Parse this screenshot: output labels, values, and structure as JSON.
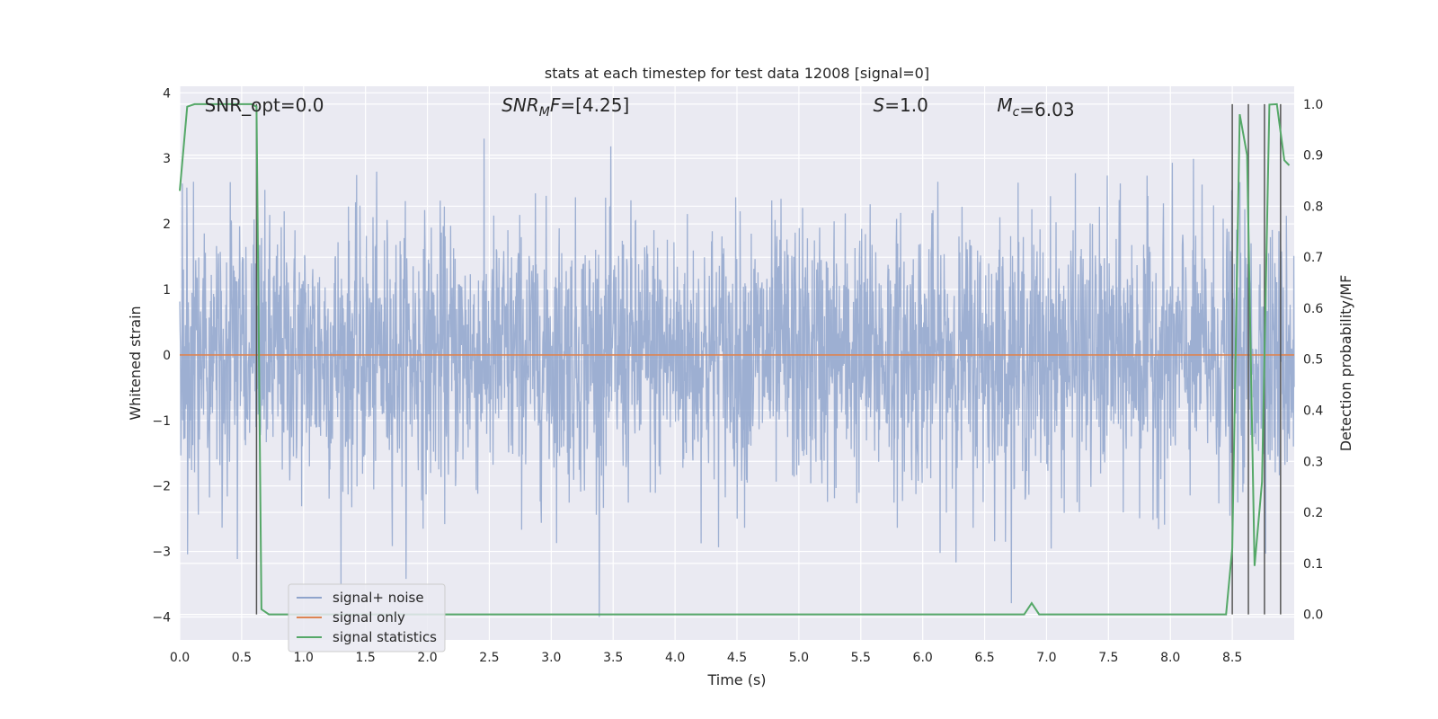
{
  "chart_data": {
    "type": "line",
    "title": "stats at each timestep for test data 12008 [signal=0]",
    "xlabel": "Time (s)",
    "ylabel": "Whitened strain",
    "ylabel_right": "Detection probability/MF",
    "xlim": [
      0,
      9.0
    ],
    "ylim": [
      -4.35,
      4.1
    ],
    "ylim_right": [
      -0.05,
      1.035
    ],
    "x_ticks": [
      "0.0",
      "0.5",
      "1.0",
      "1.5",
      "2.0",
      "2.5",
      "3.0",
      "3.5",
      "4.0",
      "4.5",
      "5.0",
      "5.5",
      "6.0",
      "6.5",
      "7.0",
      "7.5",
      "8.0",
      "8.5"
    ],
    "y_ticks": [
      "4",
      "3",
      "2",
      "1",
      "0",
      "−1",
      "−2",
      "−3",
      "−4"
    ],
    "y_ticks_right": [
      "1.0",
      "0.9",
      "0.8",
      "0.7",
      "0.6",
      "0.5",
      "0.4",
      "0.3",
      "0.2",
      "0.1",
      "0.0"
    ],
    "grid": true,
    "legend_position": "lower-left",
    "annotations": [
      {
        "text": "SNR_opt=0.0",
        "x": 0.2
      },
      {
        "text": "SNR_MF=[4.25]",
        "x": 2.6
      },
      {
        "text": "S=1.0",
        "x": 5.6
      },
      {
        "text": "M_c=6.03",
        "x": 6.6
      }
    ],
    "series": [
      {
        "name": "signal+ noise",
        "color": "#8fa4cc",
        "style": "noise",
        "amplitude_typical": 1.4,
        "amplitude_max": 4.0,
        "x_range": [
          0,
          9.0
        ]
      },
      {
        "name": "signal only",
        "color": "#dd8452",
        "x": [
          0,
          9.0
        ],
        "y": [
          0,
          0
        ]
      },
      {
        "name": "signal statistics",
        "color": "#55a868",
        "axis": "right",
        "x": [
          0.0,
          0.06,
          0.12,
          0.2,
          0.3,
          0.4,
          0.5,
          0.58,
          0.62,
          0.66,
          0.72,
          0.8,
          1.0,
          2.0,
          3.0,
          4.0,
          5.0,
          6.0,
          6.5,
          6.82,
          6.88,
          6.94,
          7.0,
          7.5,
          8.0,
          8.45,
          8.5,
          8.56,
          8.62,
          8.68,
          8.74,
          8.8,
          8.86,
          8.92,
          8.96
        ],
        "y": [
          0.83,
          0.995,
          1.0,
          1.0,
          1.0,
          1.0,
          1.0,
          1.0,
          0.995,
          0.01,
          0.0,
          0.0,
          0.0,
          0.0,
          0.0,
          0.0,
          0.0,
          0.0,
          0.0,
          0.0,
          0.022,
          0.0,
          0.0,
          0.0,
          0.0,
          0.0,
          0.13,
          0.98,
          0.9,
          0.095,
          0.26,
          0.999,
          1.0,
          0.89,
          0.88
        ]
      }
    ],
    "vertical_markers": {
      "color": "#555555",
      "x": [
        0.62,
        8.5,
        8.63,
        8.76,
        8.89
      ]
    }
  }
}
